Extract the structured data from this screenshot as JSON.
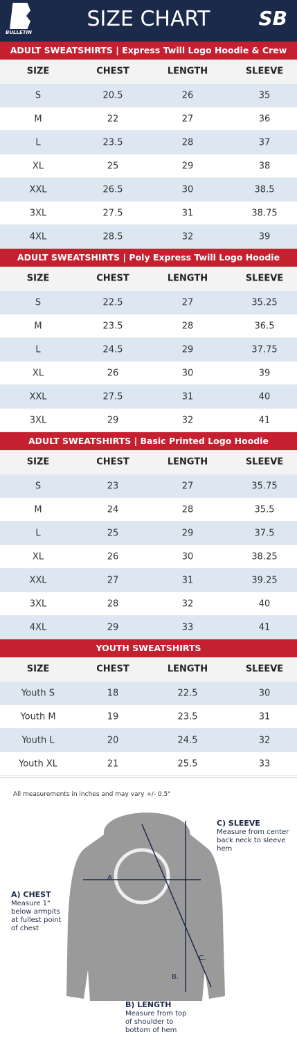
{
  "header": {
    "title": "SIZE CHART",
    "logo_left": "BULLETIN",
    "logo_right": "SB"
  },
  "tables": [
    {
      "title": "ADULT SWEATSHIRTS | Express Twill Logo Hoodie & Crew",
      "columns": [
        "SIZE",
        "CHEST",
        "LENGTH",
        "SLEEVE"
      ],
      "rows": [
        [
          "S",
          "20.5",
          "26",
          "35"
        ],
        [
          "M",
          "22",
          "27",
          "36"
        ],
        [
          "L",
          "23.5",
          "28",
          "37"
        ],
        [
          "XL",
          "25",
          "29",
          "38"
        ],
        [
          "XXL",
          "26.5",
          "30",
          "38.5"
        ],
        [
          "3XL",
          "27.5",
          "31",
          "38.75"
        ],
        [
          "4XL",
          "28.5",
          "32",
          "39"
        ]
      ]
    },
    {
      "title": "ADULT SWEATSHIRTS | Poly Express Twill Logo Hoodie",
      "columns": [
        "SIZE",
        "CHEST",
        "LENGTH",
        "SLEEVE"
      ],
      "rows": [
        [
          "S",
          "22.5",
          "27",
          "35.25"
        ],
        [
          "M",
          "23.5",
          "28",
          "36.5"
        ],
        [
          "L",
          "24.5",
          "29",
          "37.75"
        ],
        [
          "XL",
          "26",
          "30",
          "39"
        ],
        [
          "XXL",
          "27.5",
          "31",
          "40"
        ],
        [
          "3XL",
          "29",
          "32",
          "41"
        ]
      ]
    },
    {
      "title": "ADULT SWEATSHIRTS | Basic Printed Logo Hoodie",
      "columns": [
        "SIZE",
        "CHEST",
        "LENGTH",
        "SLEEVE"
      ],
      "rows": [
        [
          "S",
          "23",
          "27",
          "35.75"
        ],
        [
          "M",
          "24",
          "28",
          "35.5"
        ],
        [
          "L",
          "25",
          "29",
          "37.5"
        ],
        [
          "XL",
          "26",
          "30",
          "38.25"
        ],
        [
          "XXL",
          "27",
          "31",
          "39.25"
        ],
        [
          "3XL",
          "28",
          "32",
          "40"
        ],
        [
          "4XL",
          "29",
          "33",
          "41"
        ]
      ]
    },
    {
      "title": "YOUTH SWEATSHIRTS",
      "columns": [
        "SIZE",
        "CHEST",
        "LENGTH",
        "SLEEVE"
      ],
      "rows": [
        [
          "Youth S",
          "18",
          "22.5",
          "30"
        ],
        [
          "Youth M",
          "19",
          "23.5",
          "31"
        ],
        [
          "Youth L",
          "20",
          "24.5",
          "32"
        ],
        [
          "Youth XL",
          "21",
          "25.5",
          "33"
        ]
      ]
    }
  ],
  "footnote": "All measurements in inches and may vary +/- 0.5\"",
  "diagram": {
    "markers": [
      "A",
      "B.",
      "C."
    ],
    "notes": [
      {
        "title": "C) SLEEVE",
        "text": "Measure from center back neck to sleeve hem"
      },
      {
        "title": "A) CHEST",
        "text": "Measure 1\" below armpits at fullest point of chest"
      },
      {
        "title": "B) LENGTH",
        "text": "Measure from top of shoulder to bottom of hem"
      }
    ]
  }
}
